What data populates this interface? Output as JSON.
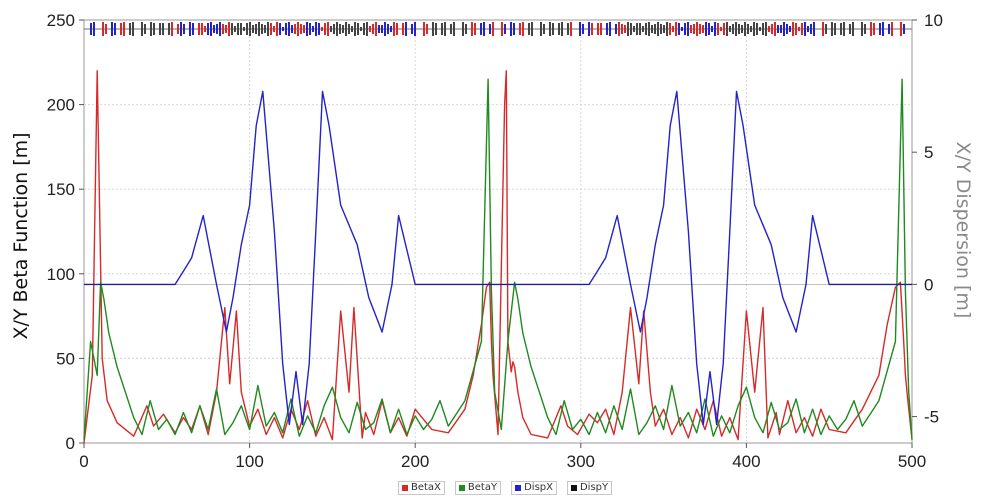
{
  "chart_data": {
    "type": "line",
    "title": "",
    "xlabel": "",
    "ylabel": "X/Y Beta Function [m]",
    "y2label": "X/Y Dispersion [m]",
    "xlim": [
      0,
      500
    ],
    "ylim": [
      0,
      250
    ],
    "y2lim": [
      -6,
      10
    ],
    "x_ticks": [
      "0",
      "100",
      "200",
      "300",
      "400",
      "500"
    ],
    "y_ticks": [
      "0",
      "50",
      "100",
      "150",
      "200",
      "250"
    ],
    "y2_ticks": [
      "-5",
      "0",
      "5",
      "10"
    ],
    "grid": true,
    "legend": "bottom-center",
    "magnet_lattice_strip": true,
    "colors": {
      "BetaX": "#d62a2a",
      "BetaY": "#1f8a1f",
      "DispX": "#2323c8",
      "DispY": "#111111"
    },
    "series": [
      {
        "name": "BetaX",
        "axis": "left",
        "x": [
          0,
          5,
          8,
          11,
          14,
          20,
          30,
          38,
          42,
          48,
          55,
          60,
          65,
          70,
          75,
          80,
          85,
          88,
          92,
          95,
          100,
          105,
          110,
          115,
          120,
          125,
          130,
          135,
          140,
          145,
          150,
          155,
          160,
          163,
          168,
          170,
          175,
          180,
          185,
          190,
          195,
          200,
          210,
          220,
          230,
          235,
          240,
          243,
          245,
          246,
          247,
          250,
          254,
          255,
          256,
          258,
          259,
          260,
          262,
          265,
          270,
          280,
          288,
          292,
          298,
          305,
          310,
          315,
          320,
          325,
          330,
          335,
          338,
          342,
          345,
          350,
          355,
          360,
          365,
          370,
          375,
          380,
          385,
          390,
          395,
          400,
          405,
          410,
          413,
          418,
          420,
          425,
          430,
          435,
          440,
          445,
          450,
          460,
          470,
          480,
          485,
          490,
          493,
          495,
          496,
          497,
          500
        ],
        "y": [
          0,
          40,
          220,
          50,
          25,
          12,
          4,
          22,
          10,
          17,
          6,
          15,
          8,
          22,
          5,
          30,
          80,
          35,
          78,
          30,
          10,
          20,
          5,
          15,
          3,
          20,
          8,
          25,
          4,
          15,
          2,
          78,
          30,
          80,
          3,
          18,
          5,
          25,
          6,
          15,
          4,
          20,
          8,
          6,
          20,
          40,
          70,
          92,
          95,
          60,
          40,
          5,
          200,
          220,
          60,
          42,
          48,
          45,
          30,
          15,
          5,
          3,
          22,
          10,
          5,
          17,
          12,
          20,
          5,
          30,
          80,
          35,
          78,
          30,
          10,
          20,
          5,
          15,
          3,
          20,
          8,
          25,
          4,
          15,
          2,
          78,
          30,
          80,
          3,
          18,
          5,
          25,
          6,
          15,
          4,
          20,
          8,
          6,
          20,
          40,
          70,
          92,
          95,
          60,
          40,
          30,
          2
        ]
      },
      {
        "name": "BetaY",
        "axis": "left",
        "x": [
          0,
          4,
          8,
          10,
          12,
          15,
          20,
          25,
          30,
          35,
          40,
          45,
          50,
          55,
          60,
          65,
          70,
          75,
          80,
          85,
          90,
          95,
          100,
          105,
          110,
          115,
          120,
          125,
          130,
          135,
          140,
          145,
          150,
          155,
          160,
          165,
          170,
          175,
          180,
          185,
          190,
          195,
          200,
          205,
          210,
          215,
          220,
          230,
          240,
          244,
          246,
          248,
          252,
          256,
          260,
          262,
          265,
          270,
          275,
          280,
          285,
          290,
          295,
          300,
          305,
          310,
          315,
          320,
          325,
          330,
          335,
          340,
          345,
          350,
          355,
          360,
          365,
          370,
          375,
          380,
          385,
          390,
          395,
          400,
          405,
          410,
          415,
          420,
          425,
          430,
          435,
          440,
          445,
          450,
          455,
          460,
          465,
          470,
          480,
          490,
          494,
          496,
          498,
          500
        ],
        "y": [
          2,
          60,
          40,
          95,
          85,
          65,
          45,
          30,
          15,
          5,
          25,
          8,
          14,
          5,
          18,
          6,
          22,
          8,
          32,
          5,
          12,
          22,
          8,
          34,
          10,
          18,
          6,
          26,
          4,
          16,
          6,
          22,
          33,
          15,
          6,
          24,
          8,
          12,
          26,
          6,
          20,
          5,
          16,
          8,
          14,
          25,
          10,
          25,
          60,
          215,
          90,
          30,
          8,
          60,
          95,
          85,
          65,
          45,
          30,
          15,
          5,
          25,
          8,
          14,
          5,
          18,
          6,
          22,
          8,
          32,
          5,
          12,
          22,
          8,
          34,
          10,
          18,
          6,
          26,
          4,
          16,
          6,
          22,
          33,
          15,
          6,
          24,
          8,
          12,
          26,
          6,
          20,
          5,
          16,
          8,
          14,
          25,
          10,
          25,
          60,
          215,
          90,
          30,
          2
        ]
      },
      {
        "name": "DispX",
        "axis": "right",
        "x": [
          0,
          55,
          60,
          65,
          72,
          80,
          86,
          90,
          95,
          100,
          104,
          108,
          115,
          120,
          124,
          128,
          132,
          136,
          140,
          144,
          148,
          155,
          165,
          172,
          180,
          186,
          190,
          200,
          250,
          300,
          305,
          310,
          315,
          322,
          330,
          336,
          340,
          345,
          350,
          354,
          358,
          365,
          370,
          374,
          378,
          382,
          386,
          390,
          394,
          398,
          405,
          415,
          422,
          430,
          436,
          440,
          450,
          500
        ],
        "y": [
          0,
          0,
          0.5,
          1,
          2.6,
          0,
          -1.8,
          -0.5,
          1.5,
          3,
          6,
          7.3,
          2,
          -3,
          -5.3,
          -3.3,
          -5.3,
          -3,
          2,
          7.3,
          6,
          3,
          1.5,
          -0.5,
          -1.8,
          0,
          2.6,
          0,
          0,
          0,
          0,
          0.5,
          1,
          2.6,
          0,
          -1.8,
          -0.5,
          1.5,
          3,
          6,
          7.3,
          2,
          -3,
          -5.3,
          -3.3,
          -5.3,
          -3,
          2,
          7.3,
          6,
          3,
          1.5,
          -0.5,
          -1.8,
          0,
          2.6,
          0,
          0
        ]
      },
      {
        "name": "DispY",
        "axis": "right",
        "x": [
          0,
          500
        ],
        "y": [
          0,
          0
        ]
      }
    ]
  }
}
